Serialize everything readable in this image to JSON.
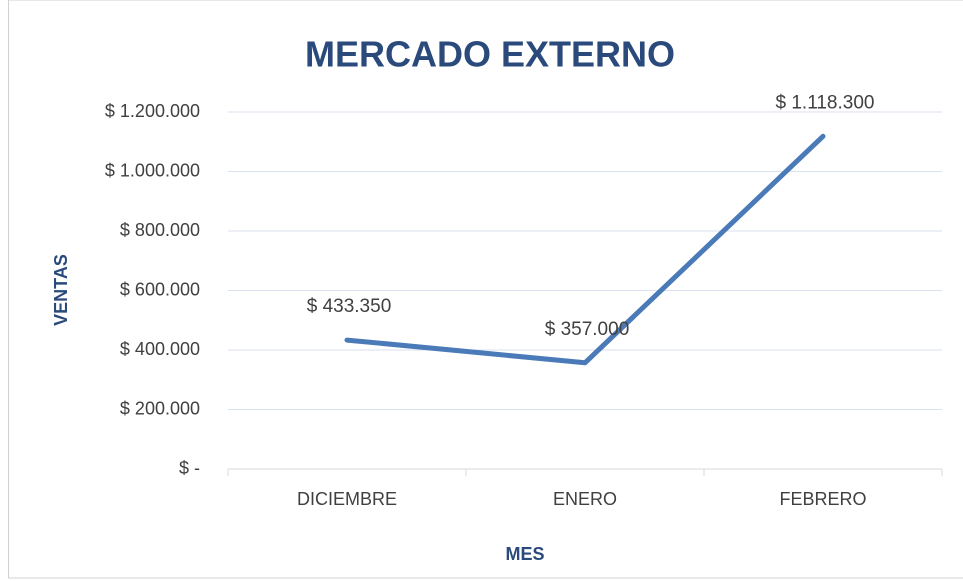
{
  "chart_data": {
    "type": "line",
    "title": "MERCADO EXTERNO",
    "x_label": "MES",
    "y_label": "VENTAS",
    "categories": [
      "DICIEMBRE",
      "ENERO",
      "FEBRERO"
    ],
    "values": [
      433350,
      357000,
      1118300
    ],
    "value_labels": [
      "$ 433.350",
      "$ 357.000",
      "$ 1.118.300"
    ],
    "color": "#4a7ab8",
    "ylim": [
      0,
      1200000
    ],
    "yticks": [
      {
        "value": 0,
        "label": "$ -"
      },
      {
        "value": 200000,
        "label": "$ 200.000"
      },
      {
        "value": 400000,
        "label": "$ 400.000"
      },
      {
        "value": 600000,
        "label": "$ 600.000"
      },
      {
        "value": 800000,
        "label": "$ 800.000"
      },
      {
        "value": 1000000,
        "label": "$ 1.000.000"
      },
      {
        "value": 1200000,
        "label": "$ 1.200.000"
      }
    ],
    "grid": true
  }
}
